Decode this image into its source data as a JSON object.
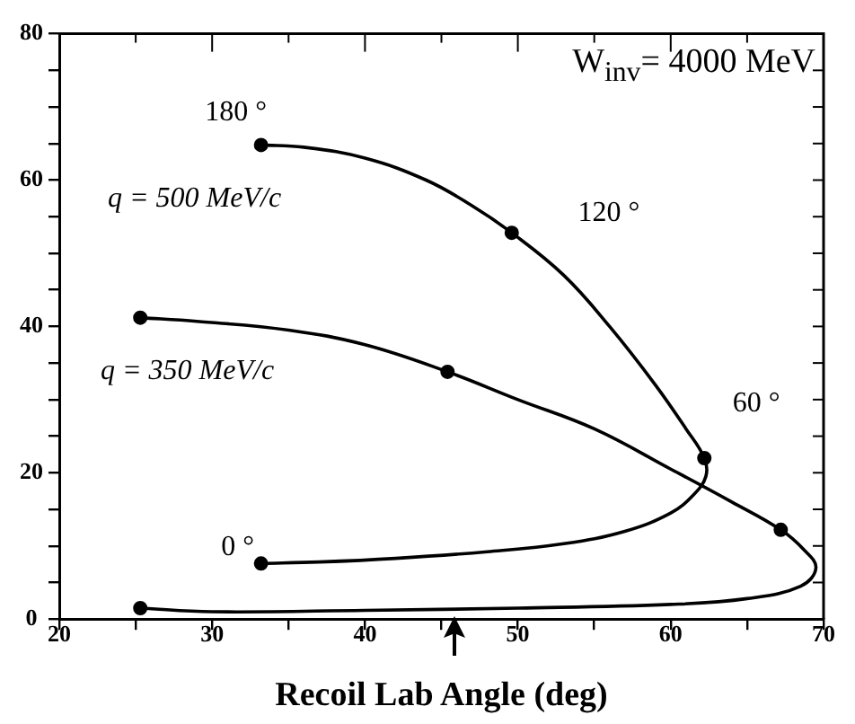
{
  "chart_data": {
    "type": "line",
    "xlabel": "Recoil Lab Angle (deg)",
    "xlim": [
      20,
      70
    ],
    "xticks": [
      20,
      {
        "value": 25,
        "label": null
      },
      30,
      {
        "value": 35,
        "label": null
      },
      40,
      {
        "value": 45,
        "label": null
      },
      50,
      {
        "value": 55,
        "label": null
      },
      60,
      {
        "value": 65,
        "label": null
      },
      70
    ],
    "ylim": [
      0,
      80
    ],
    "yticks": [
      0,
      {
        "value": 5,
        "label": null
      },
      {
        "value": 10,
        "label": null
      },
      {
        "value": 15,
        "label": null
      },
      20,
      {
        "value": 25,
        "label": null
      },
      {
        "value": 30,
        "label": null
      },
      {
        "value": 35,
        "label": null
      },
      40,
      {
        "value": 45,
        "label": null
      },
      {
        "value": 50,
        "label": null
      },
      {
        "value": 55,
        "label": null
      },
      60,
      {
        "value": 65,
        "label": null
      },
      {
        "value": 70,
        "label": null
      },
      {
        "value": 75,
        "label": null
      },
      80
    ],
    "grid": false,
    "legend": false,
    "marker": "none",
    "line_style": "solid",
    "series": [
      {
        "color": "#000000",
        "x": [
          33.2,
          36,
          40,
          44,
          47,
          49.6,
          53,
          56,
          59,
          61,
          62.2,
          62.3,
          61.5,
          60,
          57,
          53,
          48,
          42,
          37,
          33.2
        ],
        "values": [
          64.8,
          64.5,
          63,
          60,
          56.5,
          52.8,
          47,
          40,
          32,
          26,
          22,
          19.5,
          17,
          14.5,
          12,
          10.3,
          9.2,
          8.3,
          7.8,
          7.6
        ]
      },
      {
        "color": "#000000",
        "x": [
          25.3,
          29,
          35,
          40,
          45.4,
          50,
          55,
          60,
          64,
          67.2,
          68.7,
          69.5,
          68.5,
          65,
          60,
          50,
          40,
          30,
          25.3
        ],
        "values": [
          41.2,
          40.7,
          39.5,
          37.5,
          33.8,
          30,
          26,
          20.5,
          16,
          12.2,
          9.5,
          7,
          4.5,
          2.8,
          2,
          1.5,
          1.2,
          1,
          1.5
        ]
      },
      {
        "type": "scatter",
        "color": "#000000",
        "marker": "circle",
        "x": [
          33.2,
          49.6,
          62.2,
          33.2,
          25.3,
          45.4,
          67.2,
          25.3
        ],
        "values": [
          64.8,
          52.8,
          22,
          7.6,
          41.2,
          33.8,
          12.2,
          1.5
        ]
      }
    ],
    "annotations": [
      "W$_{inv}$= 4000 MeV",
      {
        "text": "180 °",
        "x": 33.2,
        "y": 64.8
      },
      {
        "text": "120 °",
        "x": 49.6,
        "y": 52.8
      },
      {
        "text": "60 °",
        "x": 62.2,
        "y": 22
      },
      {
        "text": "0 °",
        "x": 33.2,
        "y": 7.6
      },
      "q = 500 MeV/c",
      "q = 350 MeV/c"
    ]
  }
}
